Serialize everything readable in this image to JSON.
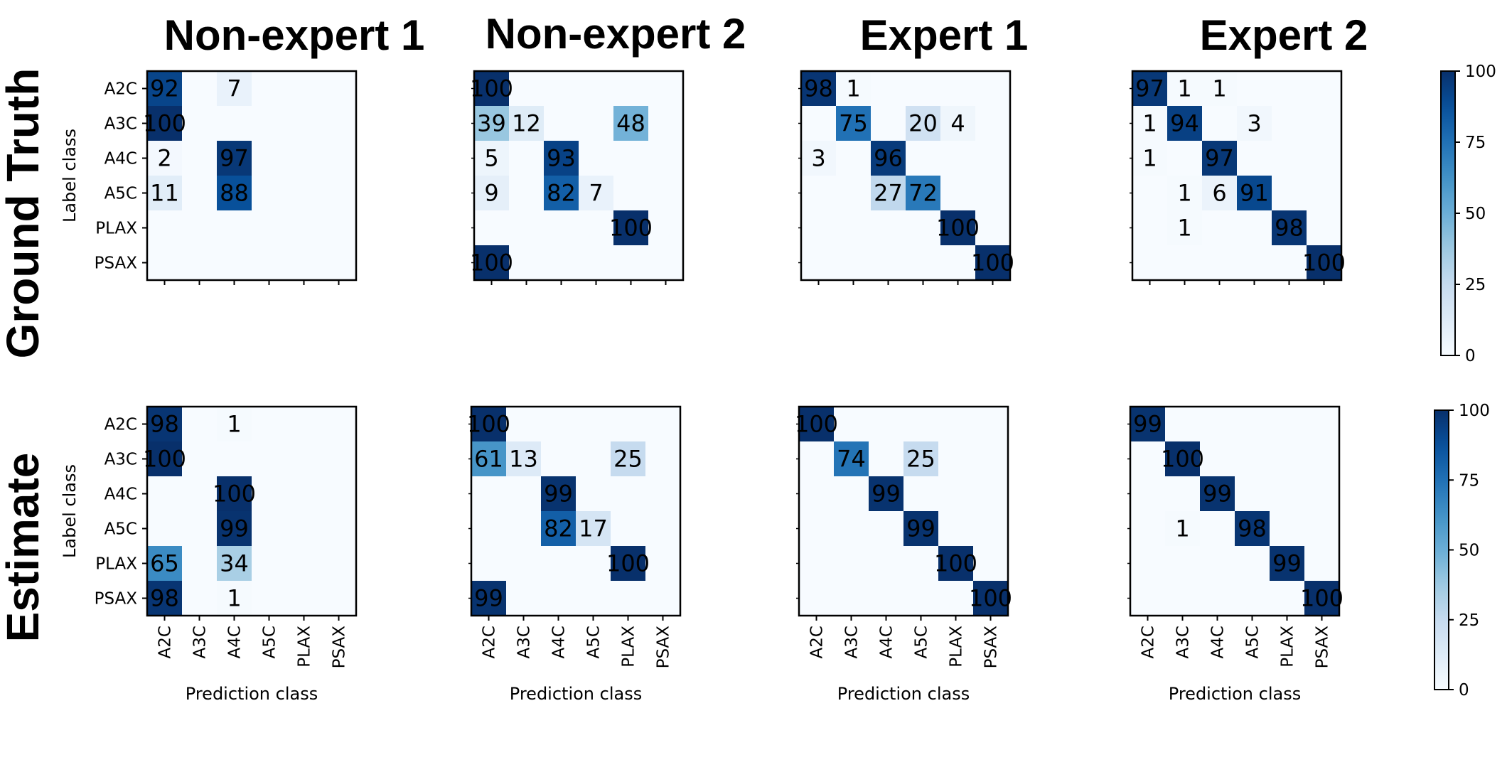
{
  "labels": {
    "col_titles": [
      "Non-expert 1",
      "Non-expert 2",
      "Expert 1",
      "Expert 2"
    ],
    "row_titles": [
      "Ground Truth",
      "Estimate"
    ],
    "ylabel": "Label class",
    "xlabel": "Prediction class"
  },
  "colors": {
    "cmap_low": "#f7fbff",
    "cmap_high": "#08306b",
    "frame": "#000000"
  },
  "chart_data": [
    {
      "type": "heatmap",
      "title": "Non-expert 1",
      "row_group": "Ground Truth",
      "classes": [
        "A2C",
        "A3C",
        "A4C",
        "A5C",
        "PLAX",
        "PSAX"
      ],
      "ylabel": "Label class",
      "values": [
        [
          92,
          0,
          7,
          0,
          0,
          0
        ],
        [
          100,
          0,
          0,
          0,
          0,
          0
        ],
        [
          2,
          0,
          97,
          0,
          0,
          0
        ],
        [
          11,
          0,
          88,
          0,
          0,
          0
        ],
        [
          0,
          0,
          0,
          0,
          0,
          0
        ],
        [
          0,
          0,
          0,
          0,
          0,
          0
        ]
      ]
    },
    {
      "type": "heatmap",
      "title": "Non-expert 2",
      "row_group": "Ground Truth",
      "classes": [
        "A2C",
        "A3C",
        "A4C",
        "A5C",
        "PLAX",
        "PSAX"
      ],
      "values": [
        [
          100,
          0,
          0,
          0,
          0,
          0
        ],
        [
          39,
          12,
          0,
          0,
          48,
          0
        ],
        [
          5,
          0,
          93,
          0,
          0,
          0
        ],
        [
          9,
          0,
          82,
          7,
          0,
          0
        ],
        [
          0,
          0,
          0,
          0,
          100,
          0
        ],
        [
          100,
          0,
          0,
          0,
          0,
          0
        ]
      ]
    },
    {
      "type": "heatmap",
      "title": "Expert 1",
      "row_group": "Ground Truth",
      "classes": [
        "A2C",
        "A3C",
        "A4C",
        "A5C",
        "PLAX",
        "PSAX"
      ],
      "values": [
        [
          98,
          1,
          0,
          0,
          0,
          0
        ],
        [
          0,
          75,
          0,
          20,
          4,
          0
        ],
        [
          3,
          0,
          96,
          0,
          0,
          0
        ],
        [
          0,
          0,
          27,
          72,
          0,
          0
        ],
        [
          0,
          0,
          0,
          0,
          100,
          0
        ],
        [
          0,
          0,
          0,
          0,
          0,
          100
        ]
      ]
    },
    {
      "type": "heatmap",
      "title": "Expert 2",
      "row_group": "Ground Truth",
      "classes": [
        "A2C",
        "A3C",
        "A4C",
        "A5C",
        "PLAX",
        "PSAX"
      ],
      "values": [
        [
          97,
          1,
          1,
          0,
          0,
          0
        ],
        [
          1,
          94,
          0,
          3,
          0,
          0
        ],
        [
          1,
          0,
          97,
          0,
          0,
          0
        ],
        [
          0,
          1,
          6,
          91,
          0,
          0
        ],
        [
          0,
          1,
          0,
          0,
          98,
          0
        ],
        [
          0,
          0,
          0,
          0,
          0,
          100
        ]
      ],
      "colorbar": {
        "range": [
          0,
          100
        ],
        "ticks": [
          "0",
          "25",
          "50",
          "75",
          "100"
        ]
      }
    },
    {
      "type": "heatmap",
      "title": "Non-expert 1",
      "row_group": "Estimate",
      "classes": [
        "A2C",
        "A3C",
        "A4C",
        "A5C",
        "PLAX",
        "PSAX"
      ],
      "ylabel": "Label class",
      "xlabel": "Prediction class",
      "values": [
        [
          98,
          0,
          1,
          0,
          0,
          0
        ],
        [
          100,
          0,
          0,
          0,
          0,
          0
        ],
        [
          0,
          0,
          100,
          0,
          0,
          0
        ],
        [
          0,
          0,
          99,
          0,
          0,
          0
        ],
        [
          65,
          0,
          34,
          0,
          0,
          0
        ],
        [
          98,
          0,
          1,
          0,
          0,
          0
        ]
      ]
    },
    {
      "type": "heatmap",
      "title": "Non-expert 2",
      "row_group": "Estimate",
      "classes": [
        "A2C",
        "A3C",
        "A4C",
        "A5C",
        "PLAX",
        "PSAX"
      ],
      "xlabel": "Prediction class",
      "values": [
        [
          100,
          0,
          0,
          0,
          0,
          0
        ],
        [
          61,
          13,
          0,
          0,
          25,
          0
        ],
        [
          0,
          0,
          99,
          0,
          0,
          0
        ],
        [
          0,
          0,
          82,
          17,
          0,
          0
        ],
        [
          0,
          0,
          0,
          0,
          100,
          0
        ],
        [
          99,
          0,
          0,
          0,
          0,
          0
        ]
      ]
    },
    {
      "type": "heatmap",
      "title": "Expert 1",
      "row_group": "Estimate",
      "classes": [
        "A2C",
        "A3C",
        "A4C",
        "A5C",
        "PLAX",
        "PSAX"
      ],
      "xlabel": "Prediction class",
      "values": [
        [
          100,
          0,
          0,
          0,
          0,
          0
        ],
        [
          0,
          74,
          0,
          25,
          0,
          0
        ],
        [
          0,
          0,
          99,
          0,
          0,
          0
        ],
        [
          0,
          0,
          0,
          99,
          0,
          0
        ],
        [
          0,
          0,
          0,
          0,
          100,
          0
        ],
        [
          0,
          0,
          0,
          0,
          0,
          100
        ]
      ]
    },
    {
      "type": "heatmap",
      "title": "Expert 2",
      "row_group": "Estimate",
      "classes": [
        "A2C",
        "A3C",
        "A4C",
        "A5C",
        "PLAX",
        "PSAX"
      ],
      "xlabel": "Prediction class",
      "values": [
        [
          99,
          0,
          0,
          0,
          0,
          0
        ],
        [
          0,
          100,
          0,
          0,
          0,
          0
        ],
        [
          0,
          0,
          99,
          0,
          0,
          0
        ],
        [
          0,
          1,
          0,
          98,
          0,
          0
        ],
        [
          0,
          0,
          0,
          0,
          99,
          0
        ],
        [
          0,
          0,
          0,
          0,
          0,
          100
        ]
      ],
      "colorbar": {
        "range": [
          0,
          100
        ],
        "ticks": [
          "0",
          "25",
          "50",
          "75",
          "100"
        ]
      }
    }
  ]
}
